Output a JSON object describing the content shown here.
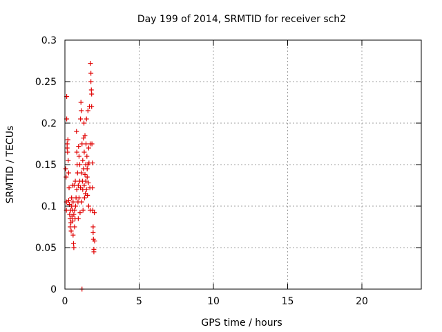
{
  "chart_data": {
    "type": "scatter",
    "title": "Day 199 of 2014, SRMTID for receiver sch2",
    "xlabel": "GPS time / hours",
    "ylabel": "SRMTID / TECUs",
    "xlim": [
      0,
      24
    ],
    "ylim": [
      0,
      0.3
    ],
    "xticks": [
      0,
      5,
      10,
      15,
      20
    ],
    "xtick_labels": [
      "0",
      "5",
      "10",
      "15",
      "20"
    ],
    "yticks": [
      0,
      0.05,
      0.1,
      0.15,
      0.2,
      0.25,
      0.3
    ],
    "ytick_labels": [
      "0",
      "0.05",
      "0.1",
      "0.15",
      "0.2",
      "0.25",
      "0.3"
    ],
    "grid": true,
    "marker": "+",
    "marker_color": "#e00000",
    "series": [
      {
        "name": "SRMTID",
        "points": [
          [
            0.05,
            0.145
          ],
          [
            0.08,
            0.135
          ],
          [
            0.1,
            0.105
          ],
          [
            0.1,
            0.095
          ],
          [
            0.12,
            0.232
          ],
          [
            0.12,
            0.205
          ],
          [
            0.15,
            0.175
          ],
          [
            0.15,
            0.17
          ],
          [
            0.18,
            0.165
          ],
          [
            0.2,
            0.18
          ],
          [
            0.22,
            0.155
          ],
          [
            0.25,
            0.14
          ],
          [
            0.25,
            0.107
          ],
          [
            0.28,
            0.122
          ],
          [
            0.3,
            0.102
          ],
          [
            0.32,
            0.09
          ],
          [
            0.35,
            0.085
          ],
          [
            0.35,
            0.075
          ],
          [
            0.38,
            0.095
          ],
          [
            0.4,
            0.08
          ],
          [
            0.42,
            0.07
          ],
          [
            0.45,
            0.11
          ],
          [
            0.45,
            0.1
          ],
          [
            0.48,
            0.088
          ],
          [
            0.5,
            0.095
          ],
          [
            0.5,
            0.125
          ],
          [
            0.52,
            0.082
          ],
          [
            0.55,
            0.065
          ],
          [
            0.55,
            0.105
          ],
          [
            0.58,
            0.055
          ],
          [
            0.6,
            0.05
          ],
          [
            0.6,
            0.09
          ],
          [
            0.62,
            0.125
          ],
          [
            0.65,
            0.095
          ],
          [
            0.65,
            0.075
          ],
          [
            0.68,
            0.085
          ],
          [
            0.7,
            0.13
          ],
          [
            0.72,
            0.1
          ],
          [
            0.75,
            0.11
          ],
          [
            0.78,
            0.19
          ],
          [
            0.8,
            0.165
          ],
          [
            0.8,
            0.12
          ],
          [
            0.82,
            0.15
          ],
          [
            0.85,
            0.14
          ],
          [
            0.88,
            0.105
          ],
          [
            0.9,
            0.125
          ],
          [
            0.9,
            0.085
          ],
          [
            0.92,
            0.172
          ],
          [
            0.95,
            0.16
          ],
          [
            0.95,
            0.11
          ],
          [
            1.0,
            0.15
          ],
          [
            1.0,
            0.13
          ],
          [
            1.02,
            0.092
          ],
          [
            1.05,
            0.205
          ],
          [
            1.05,
            0.122
          ],
          [
            1.08,
            0.225
          ],
          [
            1.1,
            0.215
          ],
          [
            1.1,
            0.14
          ],
          [
            1.12,
            0.105
          ],
          [
            1.15,
            0.175
          ],
          [
            1.15,
            0.0
          ],
          [
            1.18,
            0.13
          ],
          [
            1.2,
            0.155
          ],
          [
            1.2,
            0.12
          ],
          [
            1.22,
            0.095
          ],
          [
            1.25,
            0.182
          ],
          [
            1.25,
            0.145
          ],
          [
            1.28,
            0.2
          ],
          [
            1.3,
            0.165
          ],
          [
            1.3,
            0.125
          ],
          [
            1.32,
            0.11
          ],
          [
            1.35,
            0.185
          ],
          [
            1.35,
            0.138
          ],
          [
            1.38,
            0.115
          ],
          [
            1.4,
            0.15
          ],
          [
            1.4,
            0.13
          ],
          [
            1.42,
            0.175
          ],
          [
            1.45,
            0.205
          ],
          [
            1.45,
            0.12
          ],
          [
            1.48,
            0.16
          ],
          [
            1.5,
            0.145
          ],
          [
            1.5,
            0.135
          ],
          [
            1.52,
            0.113
          ],
          [
            1.55,
            0.215
          ],
          [
            1.55,
            0.15
          ],
          [
            1.58,
            0.128
          ],
          [
            1.6,
            0.17
          ],
          [
            1.6,
            0.1
          ],
          [
            1.62,
            0.152
          ],
          [
            1.65,
            0.22
          ],
          [
            1.68,
            0.122
          ],
          [
            1.7,
            0.175
          ],
          [
            1.7,
            0.095
          ],
          [
            1.72,
            0.272
          ],
          [
            1.75,
            0.26
          ],
          [
            1.75,
            0.25
          ],
          [
            1.78,
            0.24
          ],
          [
            1.8,
            0.235
          ],
          [
            1.8,
            0.22
          ],
          [
            1.82,
            0.175
          ],
          [
            1.85,
            0.152
          ],
          [
            1.85,
            0.122
          ],
          [
            1.88,
            0.095
          ],
          [
            1.9,
            0.075
          ],
          [
            1.9,
            0.068
          ],
          [
            1.92,
            0.06
          ],
          [
            1.95,
            0.048
          ],
          [
            1.95,
            0.045
          ],
          [
            1.98,
            0.092
          ],
          [
            2.0,
            0.058
          ]
        ]
      }
    ]
  }
}
